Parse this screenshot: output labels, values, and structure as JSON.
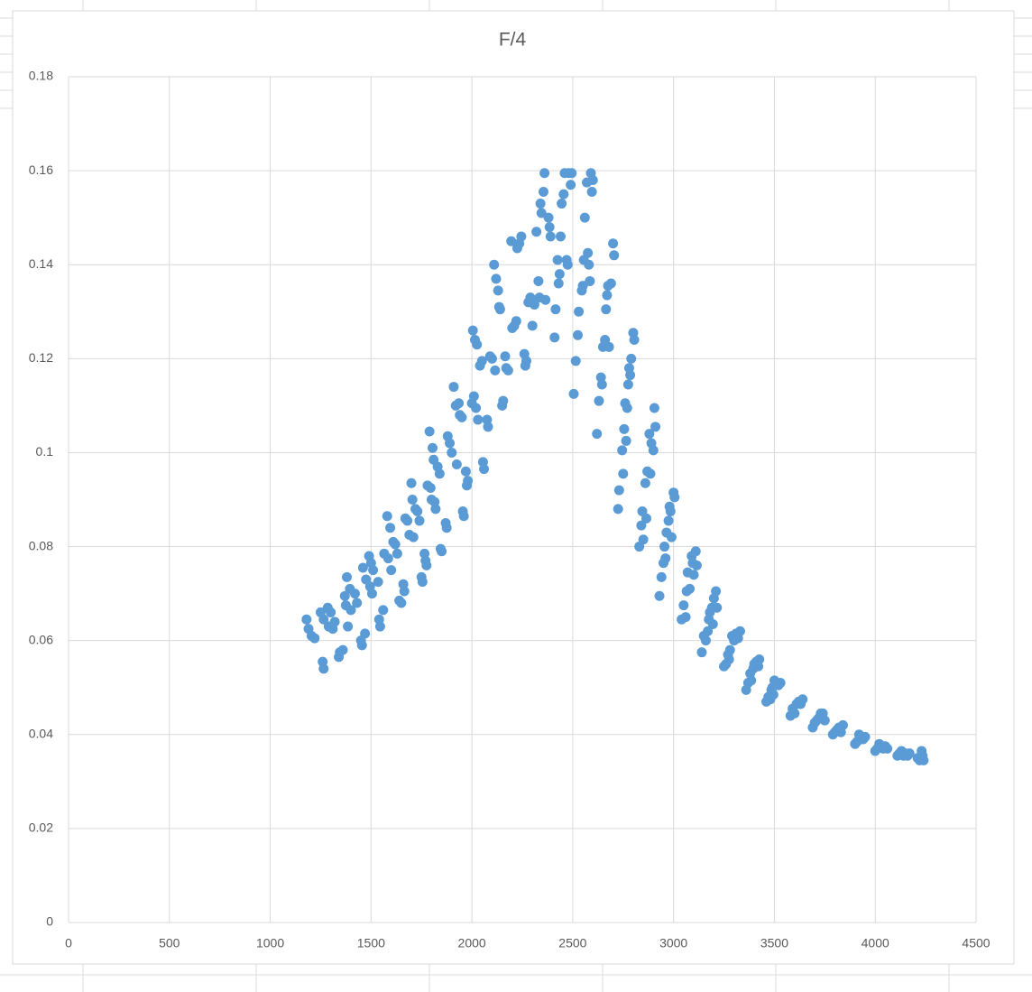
{
  "chart_data": {
    "type": "scatter",
    "title": "F/4",
    "color": "#5b9bd5",
    "grid": true,
    "xlim": [
      0,
      4500
    ],
    "xticks": [
      0,
      500,
      1000,
      1500,
      2000,
      2500,
      3000,
      3500,
      4000,
      4500
    ],
    "ylim": [
      0,
      0.18
    ],
    "yticks": [
      0,
      0.02,
      0.04,
      0.06,
      0.08,
      0.1,
      0.12,
      0.14,
      0.16,
      0.18
    ],
    "x": [
      1180,
      1190,
      1205,
      1220,
      1250,
      1260,
      1265,
      1265,
      1285,
      1290,
      1300,
      1310,
      1320,
      1340,
      1345,
      1360,
      1370,
      1375,
      1380,
      1385,
      1395,
      1400,
      1420,
      1430,
      1450,
      1455,
      1460,
      1470,
      1475,
      1490,
      1495,
      1500,
      1505,
      1510,
      1535,
      1540,
      1545,
      1560,
      1565,
      1580,
      1585,
      1595,
      1600,
      1610,
      1620,
      1630,
      1640,
      1650,
      1660,
      1665,
      1670,
      1680,
      1690,
      1700,
      1705,
      1710,
      1720,
      1730,
      1740,
      1750,
      1755,
      1765,
      1770,
      1775,
      1780,
      1790,
      1795,
      1800,
      1805,
      1810,
      1815,
      1820,
      1830,
      1840,
      1845,
      1850,
      1870,
      1875,
      1880,
      1890,
      1900,
      1910,
      1920,
      1925,
      1935,
      1940,
      1950,
      1955,
      1960,
      1970,
      1975,
      1980,
      2000,
      2005,
      2010,
      2015,
      2020,
      2025,
      2030,
      2040,
      2050,
      2055,
      2060,
      2075,
      2080,
      2090,
      2100,
      2110,
      2115,
      2120,
      2130,
      2135,
      2140,
      2150,
      2155,
      2165,
      2170,
      2180,
      2195,
      2200,
      2210,
      2220,
      2225,
      2235,
      2245,
      2260,
      2265,
      2270,
      2280,
      2290,
      2300,
      2310,
      2320,
      2330,
      2335,
      2340,
      2345,
      2355,
      2360,
      2365,
      2380,
      2385,
      2390,
      2410,
      2415,
      2425,
      2430,
      2435,
      2440,
      2445,
      2455,
      2460,
      2470,
      2475,
      2480,
      2490,
      2495,
      2505,
      2515,
      2525,
      2530,
      2545,
      2550,
      2555,
      2560,
      2570,
      2575,
      2580,
      2585,
      2590,
      2595,
      2600,
      2620,
      2630,
      2640,
      2645,
      2650,
      2660,
      2665,
      2670,
      2675,
      2680,
      2690,
      2700,
      2705,
      2725,
      2730,
      2745,
      2750,
      2755,
      2760,
      2765,
      2770,
      2775,
      2780,
      2785,
      2790,
      2800,
      2805,
      2830,
      2840,
      2845,
      2850,
      2860,
      2865,
      2870,
      2880,
      2885,
      2890,
      2900,
      2905,
      2910,
      2930,
      2940,
      2950,
      2955,
      2960,
      2965,
      2975,
      2980,
      2985,
      2990,
      3000,
      3005,
      3040,
      3050,
      3060,
      3065,
      3070,
      3080,
      3090,
      3095,
      3100,
      3110,
      3115,
      3140,
      3150,
      3160,
      3170,
      3175,
      3180,
      3190,
      3195,
      3200,
      3210,
      3215,
      3250,
      3260,
      3270,
      3275,
      3280,
      3290,
      3300,
      3310,
      3320,
      3330,
      3360,
      3370,
      3380,
      3385,
      3395,
      3400,
      3410,
      3420,
      3425,
      3460,
      3470,
      3480,
      3485,
      3490,
      3495,
      3500,
      3510,
      3520,
      3530,
      3580,
      3590,
      3600,
      3610,
      3620,
      3630,
      3640,
      3690,
      3700,
      3710,
      3720,
      3730,
      3740,
      3750,
      3790,
      3800,
      3810,
      3820,
      3830,
      3840,
      3900,
      3910,
      3920,
      3930,
      3940,
      3950,
      4000,
      4010,
      4020,
      4030,
      4040,
      4050,
      4060,
      4110,
      4120,
      4130,
      4140,
      4150,
      4160,
      4170,
      4210,
      4220,
      4230,
      4235,
      4240
    ],
    "values": [
      0.0645,
      0.0625,
      0.061,
      0.0605,
      0.066,
      0.0555,
      0.054,
      0.0645,
      0.067,
      0.063,
      0.066,
      0.0625,
      0.064,
      0.0565,
      0.0575,
      0.058,
      0.0695,
      0.0675,
      0.0735,
      0.063,
      0.071,
      0.0665,
      0.07,
      0.068,
      0.06,
      0.059,
      0.0755,
      0.0615,
      0.073,
      0.078,
      0.0715,
      0.0765,
      0.07,
      0.075,
      0.0725,
      0.0645,
      0.063,
      0.0665,
      0.0785,
      0.0865,
      0.0775,
      0.084,
      0.075,
      0.081,
      0.0805,
      0.0785,
      0.0685,
      0.068,
      0.072,
      0.0705,
      0.086,
      0.0855,
      0.0825,
      0.0935,
      0.09,
      0.082,
      0.088,
      0.0875,
      0.0855,
      0.0735,
      0.0725,
      0.0785,
      0.077,
      0.076,
      0.093,
      0.1045,
      0.0925,
      0.09,
      0.101,
      0.0985,
      0.0895,
      0.088,
      0.097,
      0.0955,
      0.0795,
      0.079,
      0.085,
      0.084,
      0.1035,
      0.102,
      0.1,
      0.114,
      0.11,
      0.0975,
      0.1105,
      0.108,
      0.1075,
      0.0875,
      0.0865,
      0.096,
      0.093,
      0.094,
      0.1105,
      0.126,
      0.112,
      0.124,
      0.1095,
      0.123,
      0.107,
      0.1185,
      0.1195,
      0.098,
      0.0965,
      0.107,
      0.1055,
      0.1205,
      0.12,
      0.14,
      0.1175,
      0.137,
      0.1345,
      0.131,
      0.1305,
      0.11,
      0.111,
      0.1205,
      0.118,
      0.1175,
      0.145,
      0.1265,
      0.127,
      0.128,
      0.1435,
      0.1445,
      0.146,
      0.121,
      0.1185,
      0.1195,
      0.132,
      0.133,
      0.127,
      0.1315,
      0.147,
      0.1365,
      0.133,
      0.153,
      0.151,
      0.1555,
      0.1595,
      0.1325,
      0.15,
      0.148,
      0.146,
      0.1245,
      0.1305,
      0.141,
      0.136,
      0.138,
      0.146,
      0.153,
      0.155,
      0.1595,
      0.141,
      0.14,
      0.1595,
      0.157,
      0.1595,
      0.1125,
      0.1195,
      0.125,
      0.13,
      0.1345,
      0.1355,
      0.141,
      0.15,
      0.1575,
      0.1425,
      0.14,
      0.1365,
      0.1595,
      0.1555,
      0.158,
      0.104,
      0.111,
      0.116,
      0.1145,
      0.1225,
      0.124,
      0.1305,
      0.1335,
      0.1355,
      0.1225,
      0.136,
      0.1445,
      0.142,
      0.088,
      0.092,
      0.1005,
      0.0955,
      0.105,
      0.1105,
      0.1025,
      0.1095,
      0.1145,
      0.118,
      0.1165,
      0.12,
      0.1255,
      0.124,
      0.08,
      0.0845,
      0.0875,
      0.0815,
      0.0935,
      0.086,
      0.096,
      0.104,
      0.0955,
      0.102,
      0.1005,
      0.1095,
      0.1055,
      0.0695,
      0.0735,
      0.0765,
      0.08,
      0.0775,
      0.083,
      0.0855,
      0.0885,
      0.0875,
      0.082,
      0.0915,
      0.0905,
      0.0645,
      0.0675,
      0.065,
      0.0705,
      0.0745,
      0.071,
      0.078,
      0.0765,
      0.074,
      0.079,
      0.076,
      0.0575,
      0.061,
      0.06,
      0.062,
      0.0645,
      0.066,
      0.067,
      0.0635,
      0.069,
      0.0705,
      0.067,
      0.0545,
      0.055,
      0.057,
      0.056,
      0.058,
      0.061,
      0.06,
      0.0615,
      0.0605,
      0.062,
      0.0495,
      0.051,
      0.053,
      0.0515,
      0.054,
      0.055,
      0.0555,
      0.0545,
      0.056,
      0.047,
      0.048,
      0.0475,
      0.0495,
      0.05,
      0.0485,
      0.0515,
      0.051,
      0.0505,
      0.051,
      0.044,
      0.0455,
      0.0445,
      0.0465,
      0.047,
      0.0465,
      0.0475,
      0.0415,
      0.0425,
      0.043,
      0.0435,
      0.0445,
      0.0445,
      0.043,
      0.04,
      0.0405,
      0.041,
      0.0415,
      0.0405,
      0.042,
      0.038,
      0.0385,
      0.04,
      0.0395,
      0.039,
      0.0395,
      0.0365,
      0.037,
      0.038,
      0.0375,
      0.037,
      0.0375,
      0.037,
      0.0355,
      0.036,
      0.0365,
      0.0355,
      0.036,
      0.0355,
      0.036,
      0.035,
      0.0345,
      0.0365,
      0.0355,
      0.0345
    ]
  }
}
